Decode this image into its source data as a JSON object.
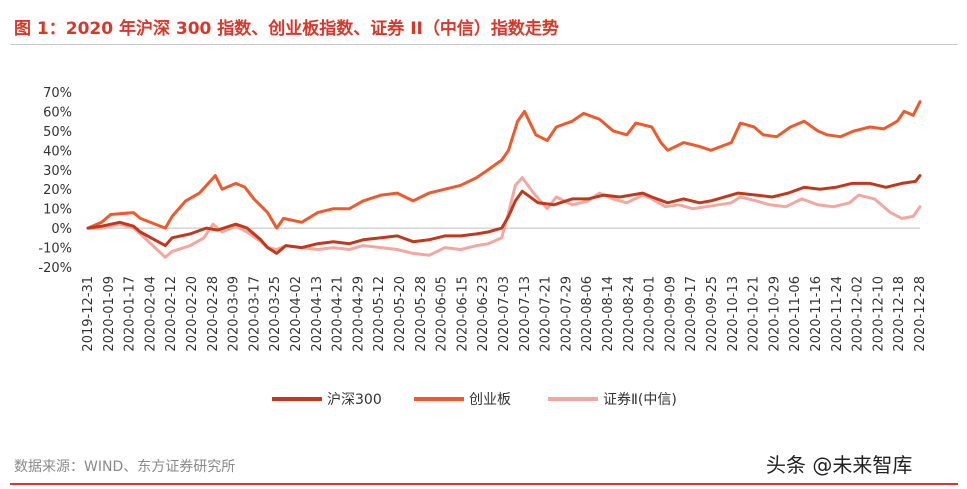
{
  "figure": {
    "title": "图 1：2020 年沪深 300 指数、创业板指数、证券 II（中信）指数走势",
    "source": "数据来源：WIND、东方证券研究所",
    "watermark": "头条 @未来智库"
  },
  "colors": {
    "title_red": "#d8372a",
    "hs300": "#c0391c",
    "chinext": "#ee5a2c",
    "securities": "#f2a7a0",
    "zero_line": "#bfbfbf"
  },
  "chart_data": {
    "type": "line",
    "title": "",
    "xlabel": "",
    "ylabel": "",
    "ylim": [
      -20,
      70
    ],
    "y_ticks": [
      "70%",
      "60%",
      "50%",
      "40%",
      "30%",
      "20%",
      "10%",
      "0%",
      "-10%",
      "-20%"
    ],
    "y_tick_values": [
      70,
      60,
      50,
      40,
      30,
      20,
      10,
      0,
      -10,
      -20
    ],
    "x_range": [
      "2019-12-31",
      "2020-12-31"
    ],
    "x_ticks": [
      "2019-12-31",
      "2020-01-09",
      "2020-01-17",
      "2020-02-04",
      "2020-02-12",
      "2020-02-20",
      "2020-02-28",
      "2020-03-09",
      "2020-03-17",
      "2020-03-25",
      "2020-04-02",
      "2020-04-13",
      "2020-04-21",
      "2020-04-29",
      "2020-05-12",
      "2020-05-20",
      "2020-05-28",
      "2020-06-05",
      "2020-06-15",
      "2020-06-23",
      "2020-07-03",
      "2020-07-13",
      "2020-07-21",
      "2020-07-29",
      "2020-08-06",
      "2020-08-14",
      "2020-08-24",
      "2020-09-01",
      "2020-09-09",
      "2020-09-17",
      "2020-09-25",
      "2020-10-13",
      "2020-10-21",
      "2020-10-29",
      "2020-11-06",
      "2020-11-16",
      "2020-11-24",
      "2020-12-02",
      "2020-12-10",
      "2020-12-18",
      "2020-12-28"
    ],
    "grid": false,
    "legend_position": "bottom",
    "series": [
      {
        "name": "沪深300",
        "color": "#c0391c",
        "points": [
          [
            "2019-12-31",
            0
          ],
          [
            "2020-01-06",
            1
          ],
          [
            "2020-01-14",
            3
          ],
          [
            "2020-01-20",
            1
          ],
          [
            "2020-01-23",
            -2
          ],
          [
            "2020-02-03",
            -9
          ],
          [
            "2020-02-06",
            -5
          ],
          [
            "2020-02-14",
            -3
          ],
          [
            "2020-02-21",
            0
          ],
          [
            "2020-02-26",
            -1
          ],
          [
            "2020-03-05",
            2
          ],
          [
            "2020-03-10",
            0
          ],
          [
            "2020-03-16",
            -6
          ],
          [
            "2020-03-19",
            -10
          ],
          [
            "2020-03-23",
            -13
          ],
          [
            "2020-03-27",
            -9
          ],
          [
            "2020-04-03",
            -10
          ],
          [
            "2020-04-10",
            -8
          ],
          [
            "2020-04-17",
            -7
          ],
          [
            "2020-04-24",
            -8
          ],
          [
            "2020-04-30",
            -6
          ],
          [
            "2020-05-08",
            -5
          ],
          [
            "2020-05-15",
            -4
          ],
          [
            "2020-05-22",
            -7
          ],
          [
            "2020-05-29",
            -6
          ],
          [
            "2020-06-05",
            -4
          ],
          [
            "2020-06-12",
            -4
          ],
          [
            "2020-06-19",
            -3
          ],
          [
            "2020-06-24",
            -2
          ],
          [
            "2020-06-30",
            0
          ],
          [
            "2020-07-03",
            6
          ],
          [
            "2020-07-06",
            14
          ],
          [
            "2020-07-09",
            19
          ],
          [
            "2020-07-16",
            13
          ],
          [
            "2020-07-23",
            12
          ],
          [
            "2020-07-31",
            15
          ],
          [
            "2020-08-07",
            15
          ],
          [
            "2020-08-14",
            17
          ],
          [
            "2020-08-21",
            16
          ],
          [
            "2020-08-31",
            18
          ],
          [
            "2020-09-04",
            16
          ],
          [
            "2020-09-11",
            13
          ],
          [
            "2020-09-18",
            15
          ],
          [
            "2020-09-25",
            13
          ],
          [
            "2020-09-30",
            14
          ],
          [
            "2020-10-12",
            18
          ],
          [
            "2020-10-20",
            17
          ],
          [
            "2020-10-27",
            16
          ],
          [
            "2020-11-03",
            18
          ],
          [
            "2020-11-10",
            21
          ],
          [
            "2020-11-17",
            20
          ],
          [
            "2020-11-24",
            21
          ],
          [
            "2020-12-01",
            23
          ],
          [
            "2020-12-09",
            23
          ],
          [
            "2020-12-16",
            21
          ],
          [
            "2020-12-23",
            23
          ],
          [
            "2020-12-29",
            24
          ],
          [
            "2020-12-31",
            27
          ]
        ]
      },
      {
        "name": "创业板",
        "color": "#ee5a2c",
        "points": [
          [
            "2019-12-31",
            0
          ],
          [
            "2020-01-06",
            3
          ],
          [
            "2020-01-10",
            7
          ],
          [
            "2020-01-20",
            8
          ],
          [
            "2020-01-23",
            5
          ],
          [
            "2020-02-03",
            0
          ],
          [
            "2020-02-06",
            6
          ],
          [
            "2020-02-12",
            14
          ],
          [
            "2020-02-18",
            18
          ],
          [
            "2020-02-25",
            27
          ],
          [
            "2020-02-28",
            20
          ],
          [
            "2020-03-05",
            23
          ],
          [
            "2020-03-09",
            21
          ],
          [
            "2020-03-13",
            15
          ],
          [
            "2020-03-19",
            8
          ],
          [
            "2020-03-23",
            0
          ],
          [
            "2020-03-26",
            5
          ],
          [
            "2020-04-03",
            3
          ],
          [
            "2020-04-10",
            8
          ],
          [
            "2020-04-17",
            10
          ],
          [
            "2020-04-24",
            10
          ],
          [
            "2020-04-30",
            14
          ],
          [
            "2020-05-08",
            17
          ],
          [
            "2020-05-15",
            18
          ],
          [
            "2020-05-22",
            14
          ],
          [
            "2020-05-29",
            18
          ],
          [
            "2020-06-05",
            20
          ],
          [
            "2020-06-12",
            22
          ],
          [
            "2020-06-19",
            26
          ],
          [
            "2020-06-24",
            30
          ],
          [
            "2020-06-30",
            35
          ],
          [
            "2020-07-03",
            40
          ],
          [
            "2020-07-07",
            55
          ],
          [
            "2020-07-10",
            60
          ],
          [
            "2020-07-15",
            48
          ],
          [
            "2020-07-20",
            45
          ],
          [
            "2020-07-24",
            52
          ],
          [
            "2020-07-31",
            55
          ],
          [
            "2020-08-05",
            59
          ],
          [
            "2020-08-12",
            56
          ],
          [
            "2020-08-18",
            50
          ],
          [
            "2020-08-24",
            48
          ],
          [
            "2020-08-28",
            54
          ],
          [
            "2020-09-04",
            52
          ],
          [
            "2020-09-08",
            44
          ],
          [
            "2020-09-11",
            40
          ],
          [
            "2020-09-18",
            44
          ],
          [
            "2020-09-25",
            42
          ],
          [
            "2020-09-30",
            40
          ],
          [
            "2020-10-09",
            44
          ],
          [
            "2020-10-13",
            54
          ],
          [
            "2020-10-19",
            52
          ],
          [
            "2020-10-23",
            48
          ],
          [
            "2020-10-29",
            47
          ],
          [
            "2020-11-04",
            52
          ],
          [
            "2020-11-10",
            55
          ],
          [
            "2020-11-16",
            50
          ],
          [
            "2020-11-20",
            48
          ],
          [
            "2020-11-26",
            47
          ],
          [
            "2020-12-02",
            50
          ],
          [
            "2020-12-09",
            52
          ],
          [
            "2020-12-15",
            51
          ],
          [
            "2020-12-21",
            55
          ],
          [
            "2020-12-24",
            60
          ],
          [
            "2020-12-28",
            58
          ],
          [
            "2020-12-31",
            65
          ]
        ]
      },
      {
        "name": "证券Ⅱ(中信)",
        "color": "#f2a7a0",
        "points": [
          [
            "2019-12-31",
            0
          ],
          [
            "2020-01-06",
            0
          ],
          [
            "2020-01-14",
            2
          ],
          [
            "2020-01-20",
            0
          ],
          [
            "2020-01-23",
            -3
          ],
          [
            "2020-02-03",
            -15
          ],
          [
            "2020-02-06",
            -12
          ],
          [
            "2020-02-14",
            -9
          ],
          [
            "2020-02-20",
            -5
          ],
          [
            "2020-02-24",
            2
          ],
          [
            "2020-02-28",
            -2
          ],
          [
            "2020-03-05",
            1
          ],
          [
            "2020-03-10",
            -2
          ],
          [
            "2020-03-16",
            -7
          ],
          [
            "2020-03-19",
            -10
          ],
          [
            "2020-03-23",
            -11
          ],
          [
            "2020-03-27",
            -9
          ],
          [
            "2020-04-03",
            -10
          ],
          [
            "2020-04-10",
            -11
          ],
          [
            "2020-04-17",
            -10
          ],
          [
            "2020-04-24",
            -11
          ],
          [
            "2020-04-30",
            -9
          ],
          [
            "2020-05-08",
            -10
          ],
          [
            "2020-05-15",
            -11
          ],
          [
            "2020-05-22",
            -13
          ],
          [
            "2020-05-29",
            -14
          ],
          [
            "2020-06-05",
            -10
          ],
          [
            "2020-06-12",
            -11
          ],
          [
            "2020-06-19",
            -9
          ],
          [
            "2020-06-24",
            -8
          ],
          [
            "2020-06-30",
            -5
          ],
          [
            "2020-07-03",
            8
          ],
          [
            "2020-07-06",
            22
          ],
          [
            "2020-07-09",
            26
          ],
          [
            "2020-07-14",
            18
          ],
          [
            "2020-07-20",
            10
          ],
          [
            "2020-07-24",
            16
          ],
          [
            "2020-07-31",
            12
          ],
          [
            "2020-08-07",
            14
          ],
          [
            "2020-08-12",
            18
          ],
          [
            "2020-08-18",
            15
          ],
          [
            "2020-08-24",
            13
          ],
          [
            "2020-08-31",
            17
          ],
          [
            "2020-09-04",
            15
          ],
          [
            "2020-09-10",
            11
          ],
          [
            "2020-09-16",
            12
          ],
          [
            "2020-09-22",
            10
          ],
          [
            "2020-09-28",
            11
          ],
          [
            "2020-10-09",
            13
          ],
          [
            "2020-10-13",
            16
          ],
          [
            "2020-10-20",
            14
          ],
          [
            "2020-10-26",
            12
          ],
          [
            "2020-11-02",
            11
          ],
          [
            "2020-11-09",
            15
          ],
          [
            "2020-11-16",
            12
          ],
          [
            "2020-11-23",
            11
          ],
          [
            "2020-11-30",
            13
          ],
          [
            "2020-12-04",
            17
          ],
          [
            "2020-12-11",
            15
          ],
          [
            "2020-12-18",
            8
          ],
          [
            "2020-12-23",
            5
          ],
          [
            "2020-12-28",
            6
          ],
          [
            "2020-12-31",
            11
          ]
        ]
      }
    ]
  }
}
